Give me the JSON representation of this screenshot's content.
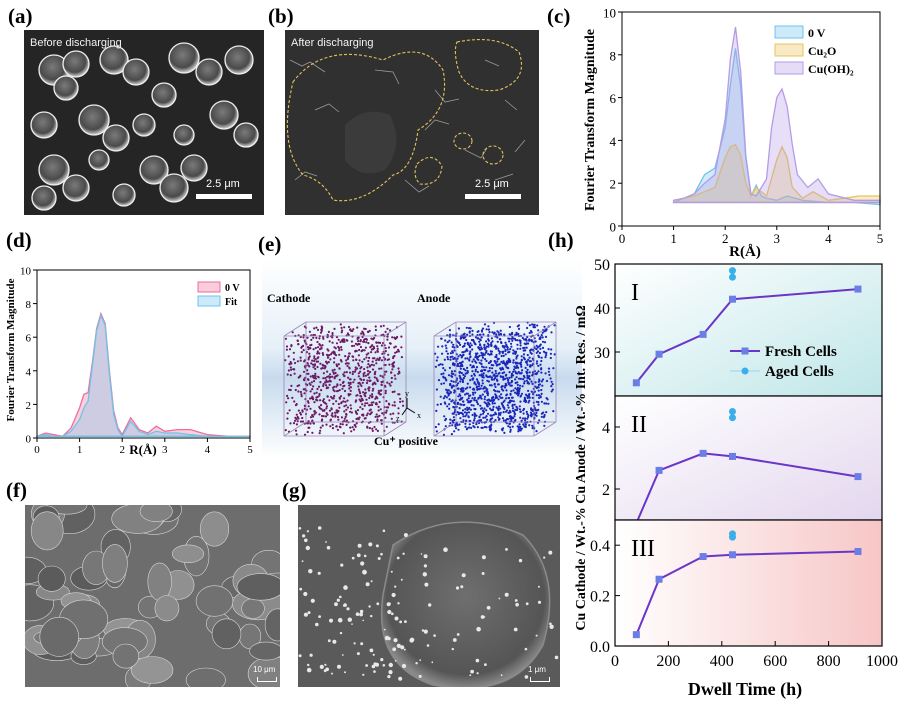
{
  "panels": {
    "a": {
      "label": "(a)",
      "caption": "Before discharging",
      "scale": "2.5 μm"
    },
    "b": {
      "label": "(b)",
      "caption": "After discharging",
      "scale": "2.5 μm"
    },
    "c": {
      "label": "(c)"
    },
    "d": {
      "label": "(d)"
    },
    "e": {
      "label": "(e)",
      "cathode": "Cathode",
      "anode": "Anode",
      "ion": "Cu⁺ positive",
      "axes": {
        "y": "y",
        "z": "z",
        "x": "x"
      }
    },
    "f": {
      "label": "(f)",
      "scale": "10 μm"
    },
    "g": {
      "label": "(g)",
      "scale": "1 μm"
    },
    "h": {
      "label": "(h)"
    }
  },
  "chart_data": [
    {
      "id": "c",
      "type": "area",
      "xlabel": "R(Å)",
      "ylabel": "Fourier Transform Magnitude",
      "xlim": [
        0,
        5
      ],
      "ylim": [
        0,
        10
      ],
      "xticks": [
        "0",
        "1",
        "2",
        "3",
        "4",
        "5"
      ],
      "yticks": [
        "0",
        "2",
        "4",
        "6",
        "8",
        "10"
      ],
      "legend": [
        {
          "name": "0 V",
          "color": "#6fc3ea"
        },
        {
          "name": "Cu₂O",
          "color": "#e9c45a"
        },
        {
          "name": "Cu(OH)₂",
          "color": "#b59be6"
        }
      ],
      "series": [
        {
          "name": "0 V",
          "x": [
            1.0,
            1.2,
            1.4,
            1.6,
            1.8,
            2.0,
            2.1,
            2.2,
            2.3,
            2.4,
            2.5,
            2.6,
            2.7,
            2.8,
            3.0,
            3.2,
            3.5,
            4.0,
            4.5,
            5.0
          ],
          "y": [
            1.1,
            1.3,
            1.5,
            2.4,
            2.7,
            4.6,
            6.6,
            8.3,
            6.5,
            3.2,
            1.4,
            1.9,
            1.4,
            1.3,
            1.2,
            1.4,
            1.2,
            1.1,
            1.1,
            1.0
          ]
        },
        {
          "name": "Cu₂O",
          "x": [
            1.0,
            1.2,
            1.4,
            1.6,
            1.8,
            2.0,
            2.1,
            2.2,
            2.3,
            2.4,
            2.5,
            2.6,
            2.8,
            3.0,
            3.1,
            3.2,
            3.3,
            3.5,
            3.7,
            4.0,
            4.3,
            4.6,
            5.0
          ],
          "y": [
            1.2,
            1.3,
            1.4,
            1.6,
            1.8,
            3.2,
            3.7,
            3.8,
            3.3,
            2.0,
            1.4,
            1.8,
            1.4,
            3.1,
            3.7,
            3.2,
            1.8,
            1.3,
            1.6,
            1.2,
            1.3,
            1.4,
            1.4
          ]
        },
        {
          "name": "Cu(OH)₂",
          "x": [
            1.0,
            1.2,
            1.4,
            1.6,
            1.8,
            2.0,
            2.1,
            2.2,
            2.3,
            2.4,
            2.5,
            2.6,
            2.8,
            2.9,
            3.0,
            3.1,
            3.2,
            3.3,
            3.4,
            3.6,
            3.8,
            4.0,
            4.5,
            5.0
          ],
          "y": [
            1.2,
            1.3,
            1.5,
            2.0,
            2.4,
            5.0,
            7.8,
            9.3,
            7.2,
            3.3,
            1.5,
            1.4,
            2.2,
            4.6,
            6.0,
            6.4,
            5.6,
            3.8,
            2.4,
            1.8,
            2.2,
            1.5,
            1.2,
            1.2
          ]
        }
      ]
    },
    {
      "id": "d",
      "type": "area",
      "xlabel": "R(Å)",
      "ylabel": "Fourier Transform Magnitude",
      "xlim": [
        0,
        5
      ],
      "ylim": [
        0,
        10
      ],
      "xticks": [
        "0",
        "1",
        "2",
        "3",
        "4",
        "5"
      ],
      "yticks": [
        "0",
        "2",
        "4",
        "6",
        "8",
        "10"
      ],
      "legend": [
        {
          "name": "0 V",
          "color": "#f06c9b"
        },
        {
          "name": "Fit",
          "color": "#6fc3ea"
        }
      ],
      "series": [
        {
          "name": "0 V",
          "x": [
            0,
            0.2,
            0.4,
            0.6,
            0.8,
            1.0,
            1.1,
            1.2,
            1.3,
            1.4,
            1.5,
            1.6,
            1.7,
            1.8,
            1.9,
            2.0,
            2.2,
            2.4,
            2.6,
            2.8,
            3.0,
            3.3,
            3.6,
            4.0,
            4.5,
            5.0
          ],
          "y": [
            0.1,
            0.3,
            0.2,
            0.1,
            0.6,
            1.8,
            2.6,
            2.7,
            4.5,
            6.5,
            7.4,
            6.8,
            4.0,
            1.6,
            0.6,
            0.2,
            1.2,
            0.5,
            0.3,
            0.7,
            0.4,
            0.5,
            0.5,
            0.2,
            0.1,
            0.1
          ]
        },
        {
          "name": "Fit",
          "x": [
            0,
            0.2,
            0.4,
            0.6,
            0.8,
            1.0,
            1.1,
            1.2,
            1.3,
            1.4,
            1.5,
            1.6,
            1.7,
            1.8,
            1.9,
            2.0,
            2.2,
            2.4,
            2.6,
            2.8,
            3.0,
            3.3,
            3.6,
            4.0,
            4.5,
            5.0
          ],
          "y": [
            0.1,
            0.2,
            0.1,
            0.1,
            0.4,
            1.1,
            1.8,
            2.2,
            4.3,
            6.4,
            7.3,
            6.7,
            3.8,
            1.4,
            0.5,
            0.1,
            1.0,
            0.4,
            0.2,
            0.4,
            0.3,
            0.3,
            0.2,
            0.1,
            0.1,
            0.1
          ]
        }
      ]
    },
    {
      "id": "h",
      "type": "line",
      "xlabel": "Dwell Time (h)",
      "ylabel": "Cu Cathode / Wt.-% Cu Anode / Wt.-% Int. Res. / mΩ",
      "xlim": [
        0,
        1000
      ],
      "xticks": [
        "0",
        "200",
        "400",
        "600",
        "800",
        "1000"
      ],
      "legend": [
        {
          "name": "Fresh Cells"
        },
        {
          "name": "Aged Cells"
        }
      ],
      "subplots": [
        {
          "name": "I",
          "ylim": [
            20,
            50
          ],
          "yticks": [
            "30",
            "40",
            "50"
          ],
          "series": [
            {
              "name": "Fresh Cells",
              "x": [
                80,
                165,
                330,
                440,
                910
              ],
              "y": [
                23,
                29.5,
                34,
                42,
                44.3
              ]
            },
            {
              "name": "Aged Cells",
              "x": [
                440,
                440
              ],
              "y": [
                47,
                48.5
              ]
            }
          ]
        },
        {
          "name": "II",
          "ylim": [
            1,
            5
          ],
          "yticks": [
            "2",
            "4"
          ],
          "series": [
            {
              "name": "Fresh Cells",
              "x": [
                80,
                165,
                330,
                440,
                910
              ],
              "y": [
                0.9,
                2.6,
                3.15,
                3.05,
                2.4
              ]
            },
            {
              "name": "Aged Cells",
              "x": [
                440,
                440
              ],
              "y": [
                4.3,
                4.5
              ]
            }
          ]
        },
        {
          "name": "III",
          "ylim": [
            0,
            0.5
          ],
          "yticks": [
            "0.0",
            "0.2",
            "0.4"
          ],
          "series": [
            {
              "name": "Fresh Cells",
              "x": [
                80,
                165,
                330,
                440,
                910
              ],
              "y": [
                0.045,
                0.265,
                0.355,
                0.362,
                0.375
              ]
            },
            {
              "name": "Aged Cells",
              "x": [
                440,
                440
              ],
              "y": [
                0.432,
                0.445
              ]
            }
          ]
        }
      ]
    }
  ]
}
